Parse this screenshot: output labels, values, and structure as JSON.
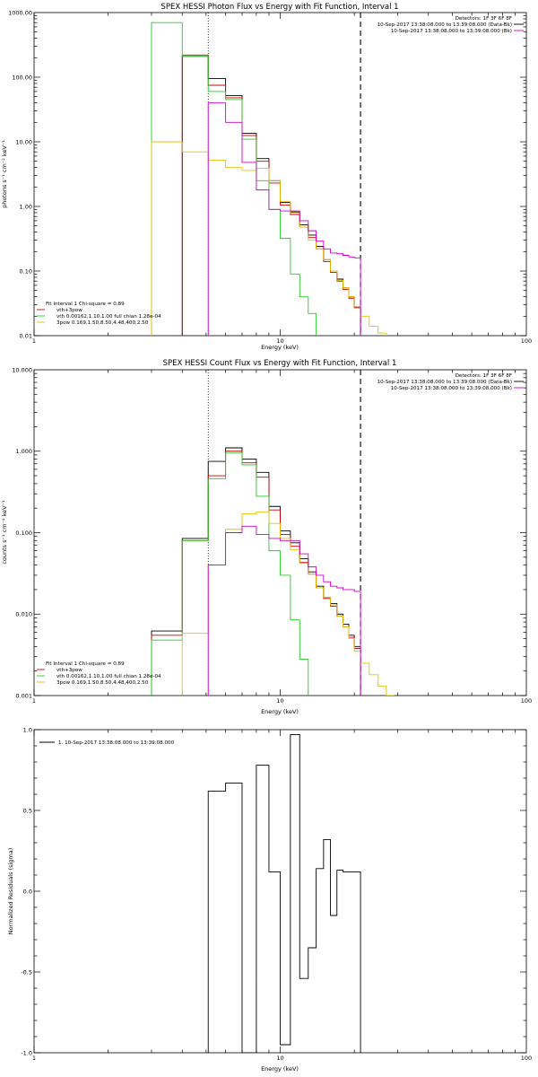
{
  "chart_data": [
    {
      "type": "line",
      "title": "SPEX HESSI Photon Flux vs Energy with Fit Function, Interval 1",
      "xlabel": "Energy (keV)",
      "ylabel": "photons s⁻¹ cm⁻² keV⁻¹",
      "xscale": "log",
      "yscale": "log",
      "xlim": [
        1,
        100
      ],
      "ylim": [
        0.01,
        1000
      ],
      "xticks": [
        1,
        10,
        100
      ],
      "xtick_labels": [
        "1",
        "10",
        "100"
      ],
      "yticks": [
        0.01,
        0.1,
        1,
        10,
        100,
        1000
      ],
      "ytick_labels": [
        "0.01",
        "0.10",
        "1.00",
        "10.00",
        "100.00",
        "1000.00"
      ],
      "vlines": [
        {
          "x": 5.1,
          "style": "dotted"
        },
        {
          "x": 21.2,
          "style": "dashed"
        }
      ],
      "legend_right": {
        "lines": [
          {
            "text": "Detectors: 1F 3F 6F 8F",
            "color": ""
          },
          {
            "text": "10-Sep-2017 13:38:08.000 to 13:39:08.000 (Data-Bk)",
            "color": "#000000"
          },
          {
            "text": "10-Sep-2017 13:38:08.000 to 13:39:08.000 (Bk)",
            "color": "#cc00cc"
          }
        ]
      },
      "legend_left": {
        "header": "Fit Interval 1   Chi-square = 0.89",
        "entries": [
          {
            "text": "vth+3pow",
            "color": "#cc0000"
          },
          {
            "text": "vth 0.00162,1.10,1.00  full chian 1.28e-04",
            "color": "#22cc22"
          },
          {
            "text": "3pow 0.169,1.50,8.50,4.48,400,2.50",
            "color": "#e6c000"
          }
        ]
      },
      "series": [
        {
          "name": "10-Sep-2017 13:38:08.000 to 13:39:08.000 (Data-Bk)",
          "color": "#000000",
          "edges": [
            4.0,
            5.1,
            6.0,
            7.0,
            8.0,
            9.0,
            10.0,
            11.0,
            12.0,
            13.0,
            14.0,
            15.0,
            16.0,
            17.0,
            18.0,
            19.0,
            20.0,
            21.2
          ],
          "values": [
            210,
            95,
            52,
            13.5,
            5.5,
            2.5,
            1.15,
            0.82,
            0.52,
            0.36,
            0.24,
            0.15,
            0.1,
            0.075,
            0.055,
            0.04,
            0.028
          ]
        },
        {
          "name": "vth+3pow",
          "color": "#cc0000",
          "edges": [
            4.0,
            5.1,
            6.0,
            7.0,
            8.0,
            9.0,
            10.0,
            11.0,
            12.0,
            13.0,
            14.0,
            15.0,
            16.0,
            17.0,
            18.0,
            19.0,
            20.0,
            21.2
          ],
          "values": [
            220,
            75,
            48,
            12.5,
            5.0,
            2.3,
            1.05,
            0.75,
            0.48,
            0.33,
            0.22,
            0.14,
            0.095,
            0.07,
            0.052,
            0.038,
            0.027
          ]
        },
        {
          "name": "vth 0.00162,1.10,1.00  full chian 1.28e-04",
          "color": "#22cc22",
          "edges": [
            3.0,
            4.0,
            5.1,
            6.0,
            7.0,
            8.0,
            9.0,
            10.0,
            11.0,
            12.0,
            13.0,
            14.0
          ],
          "values": [
            700,
            210,
            60,
            45,
            11,
            2.5,
            0.9,
            0.32,
            0.09,
            0.04,
            0.022
          ]
        },
        {
          "name": "3pow 0.169,1.50,8.50,4.48,400,2.50",
          "color": "#e6c000",
          "edges": [
            3.0,
            4.0,
            5.1,
            6.0,
            7.0,
            8.0,
            9.0,
            10.0,
            11.0,
            12.0,
            13.0,
            14.0,
            15.0,
            16.0,
            17.0,
            18.0,
            19.0,
            20.0,
            21.2,
            23.0,
            25.0,
            27.0
          ],
          "values": [
            10,
            7,
            5.2,
            4.0,
            3.6,
            3.9,
            2.5,
            1.2,
            0.8,
            0.48,
            0.3,
            0.22,
            0.15,
            0.1,
            0.072,
            0.055,
            0.04,
            0.028,
            0.02,
            0.014,
            0.011
          ]
        },
        {
          "name": "10-Sep-2017 13:38:08.000 to 13:39:08.000 (Bk)",
          "color": "#cc00cc",
          "edges": [
            5.1,
            6.0,
            7.0,
            8.0,
            9.0,
            10.0,
            11.0,
            12.0,
            13.0,
            14.0,
            15.0,
            16.0,
            17.0,
            18.0,
            19.0,
            20.0,
            21.2
          ],
          "values": [
            40,
            20,
            4.8,
            1.8,
            0.9,
            0.85,
            0.85,
            0.6,
            0.42,
            0.29,
            0.22,
            0.19,
            0.185,
            0.175,
            0.165,
            0.16
          ],
          "drop_edges": true
        }
      ]
    },
    {
      "type": "line",
      "title": "SPEX HESSI Count Flux vs Energy with Fit Function, Interval 1",
      "xlabel": "Energy (keV)",
      "ylabel": "counts s⁻¹ cm⁻² keV⁻¹",
      "xscale": "log",
      "yscale": "log",
      "xlim": [
        1,
        100
      ],
      "ylim": [
        0.001,
        10
      ],
      "xticks": [
        1,
        10,
        100
      ],
      "xtick_labels": [
        "1",
        "10",
        "100"
      ],
      "yticks": [
        0.001,
        0.01,
        0.1,
        1,
        10
      ],
      "ytick_labels": [
        "0.001",
        "0.010",
        "0.100",
        "1.000",
        "10.000"
      ],
      "vlines": [
        {
          "x": 5.1,
          "style": "dotted"
        },
        {
          "x": 21.2,
          "style": "dashed"
        }
      ],
      "legend_right": {
        "lines": [
          {
            "text": "Detectors: 1F 3F 6F 8F",
            "color": ""
          },
          {
            "text": "10-Sep-2017 13:38:08.000 to 13:39:08.000 (Data-Bk)",
            "color": "#000000"
          },
          {
            "text": "10-Sep-2017 13:38:08.000 to 13:39:08.000 (Bk)",
            "color": "#cc00cc"
          }
        ]
      },
      "legend_left": {
        "header": "Fit Interval 1   Chi-square = 0.89",
        "entries": [
          {
            "text": "vth+3pow",
            "color": "#cc0000"
          },
          {
            "text": "vth 0.00162,1.10,1.00  full chian 1.28e-04",
            "color": "#22cc22"
          },
          {
            "text": "3pow 0.169,1.50,8.50,4.48,400,2.50",
            "color": "#e6c000"
          }
        ]
      },
      "series": [
        {
          "name": "10-Sep-2017 13:38:08.000 to 13:39:08.000 (Data-Bk)",
          "color": "#000000",
          "edges": [
            3.0,
            4.0,
            5.1,
            6.0,
            7.0,
            8.0,
            9.0,
            10.0,
            11.0,
            12.0,
            13.0,
            14.0,
            15.0,
            16.0,
            17.0,
            18.0,
            19.0,
            20.0,
            21.2
          ],
          "values": [
            0.0062,
            0.085,
            0.75,
            1.1,
            0.8,
            0.55,
            0.21,
            0.105,
            0.075,
            0.048,
            0.033,
            0.022,
            0.016,
            0.0135,
            0.01,
            0.0075,
            0.0055,
            0.004
          ]
        },
        {
          "name": "vth+3pow",
          "color": "#cc0000",
          "edges": [
            3.0,
            4.0,
            5.1,
            6.0,
            7.0,
            8.0,
            9.0,
            10.0,
            11.0,
            12.0,
            13.0,
            14.0,
            15.0,
            16.0,
            17.0,
            18.0,
            19.0,
            20.0,
            21.2
          ],
          "values": [
            0.0055,
            0.08,
            0.5,
            1.0,
            0.72,
            0.48,
            0.19,
            0.095,
            0.068,
            0.043,
            0.031,
            0.021,
            0.0155,
            0.0125,
            0.0095,
            0.007,
            0.0052,
            0.0038
          ]
        },
        {
          "name": "vth 0.00162,1.10,1.00  full chian 1.28e-04",
          "color": "#22cc22",
          "edges": [
            3.0,
            4.0,
            5.1,
            6.0,
            7.0,
            8.0,
            9.0,
            10.0,
            11.0,
            12.0,
            13.0
          ],
          "values": [
            0.0048,
            0.08,
            0.46,
            0.95,
            0.68,
            0.28,
            0.06,
            0.03,
            0.0085,
            0.0028
          ]
        },
        {
          "name": "3pow 0.169,1.50,8.50,4.48,400,2.50",
          "color": "#e6c000",
          "edges": [
            4.0,
            5.1,
            6.0,
            7.0,
            8.0,
            9.0,
            10.0,
            11.0,
            12.0,
            13.0,
            14.0,
            15.0,
            16.0,
            17.0,
            18.0,
            19.0,
            20.0,
            21.2,
            23.0,
            25.0,
            27.0,
            29.0
          ],
          "values": [
            0.0058,
            0.04,
            0.11,
            0.17,
            0.18,
            0.13,
            0.085,
            0.062,
            0.042,
            0.031,
            0.021,
            0.016,
            0.013,
            0.0095,
            0.007,
            0.005,
            0.0035,
            0.0025,
            0.0018,
            0.0013,
            0.001
          ]
        },
        {
          "name": "10-Sep-2017 13:38:08.000 to 13:39:08.000 (Bk)",
          "color": "#cc00cc",
          "edges": [
            5.1,
            6.0,
            7.0,
            8.0,
            9.0,
            10.0,
            11.0,
            12.0,
            13.0,
            14.0,
            15.0,
            16.0,
            17.0,
            18.0,
            19.0,
            20.0,
            21.2
          ],
          "values": [
            0.04,
            0.1,
            0.12,
            0.095,
            0.085,
            0.08,
            0.08,
            0.055,
            0.038,
            0.03,
            0.025,
            0.022,
            0.021,
            0.02,
            0.02,
            0.019
          ],
          "drop_edges": true
        }
      ]
    },
    {
      "type": "line",
      "title": "",
      "xlabel": "Energy (keV)",
      "ylabel": "Normalized Residuals (sigma)",
      "xscale": "log",
      "yscale": "linear",
      "xlim": [
        1,
        100
      ],
      "ylim": [
        -1.0,
        1.0
      ],
      "xticks": [
        1,
        10,
        100
      ],
      "xtick_labels": [
        "1",
        "10",
        "100"
      ],
      "yticks": [
        -1.0,
        -0.5,
        0.0,
        0.5,
        1.0
      ],
      "ytick_labels": [
        "-1.0",
        "-0.5",
        "0.0",
        "0.5",
        "1.0"
      ],
      "legend_left_top": "1. 10-Sep-2017 13:38:08.000 to 13:39:08.000",
      "series": [
        {
          "name": "1. 10-Sep-2017 13:38:08.000 to 13:39:08.000",
          "color": "#000000",
          "edges": [
            5.1,
            6.0,
            7.0,
            8.0,
            9.0,
            10.0,
            11.0,
            12.0,
            13.0,
            14.0,
            15.0,
            16.0,
            17.0,
            18.0,
            19.0,
            20.0,
            21.2
          ],
          "values": [
            0.62,
            0.67,
            -1.0,
            0.78,
            0.12,
            -0.95,
            0.97,
            -0.54,
            -0.35,
            0.14,
            0.32,
            -0.15,
            0.13,
            0.12,
            0.12,
            0.12
          ],
          "drop_edges": true
        }
      ]
    }
  ]
}
